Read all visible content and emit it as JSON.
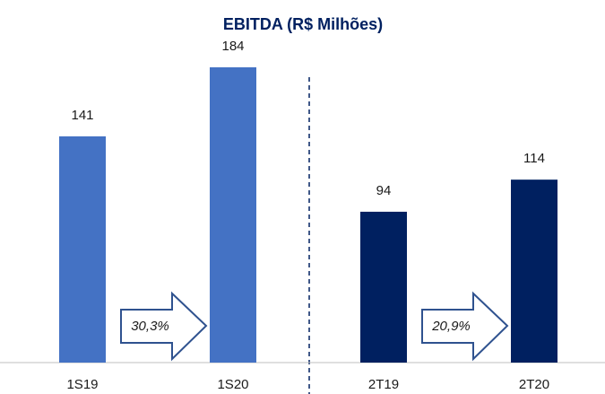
{
  "chart_data": {
    "type": "bar",
    "title": "EBITDA (R$ Milhões)",
    "categories": [
      "1S19",
      "1S20",
      "2T19",
      "2T20"
    ],
    "values": [
      141,
      184,
      94,
      114
    ],
    "colors": [
      "#4472c4",
      "#4472c4",
      "#002060",
      "#002060"
    ],
    "annotations": [
      "30,3%",
      "20,9%"
    ]
  }
}
